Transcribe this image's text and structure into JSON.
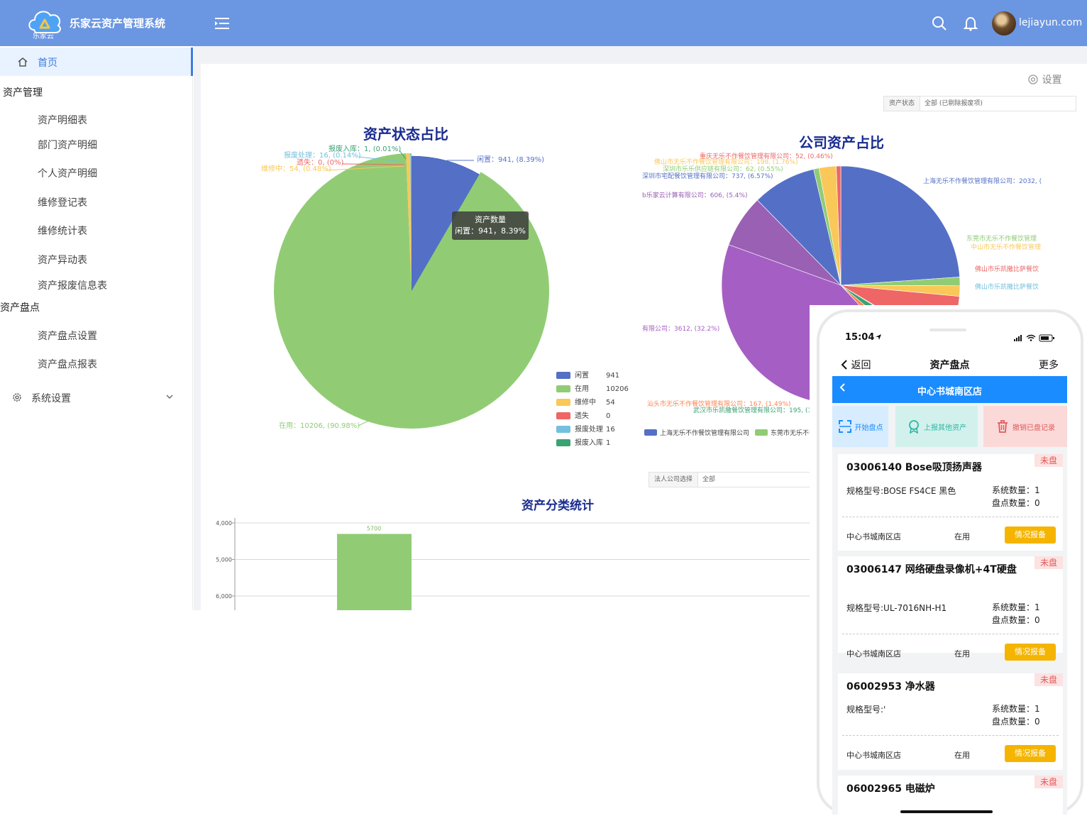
{
  "header": {
    "logo_caption": "乐家云",
    "app_title": "乐家云资产管理系统",
    "username": "lejiayun.com"
  },
  "sidebar": {
    "home": "首页",
    "group_asset_mgmt": "资产管理",
    "asset_items": [
      "资产明细表",
      "部门资产明细",
      "个人资产明细",
      "维修登记表",
      "维修统计表",
      "资产异动表",
      "资产报废信息表"
    ],
    "group_inventory": "资产盘点",
    "inventory_items": [
      "资产盘点设置",
      "资产盘点报表"
    ],
    "system_settings": "系统设置"
  },
  "toolbar": {
    "settings_label": "设置",
    "status_filter_label": "资产状态",
    "status_filter_value": "全部 (已剔除报废项)",
    "company_filter_label": "法人公司选择",
    "company_filter_value": "全部"
  },
  "status_chart": {
    "title": "资产状态占比",
    "tooltip_title": "资产数量",
    "tooltip_value": "闲置：941，8.39%",
    "slice_labels": [
      {
        "text": "闲置：941, (8.39%)",
        "color": "#5470c6"
      },
      {
        "text": "在用：10206, (90.98%)",
        "color": "#91cc75"
      },
      {
        "text": "维修中：54, (0.48%)",
        "color": "#fac858"
      },
      {
        "text": "遗失：0, (0%)",
        "color": "#ee6666"
      },
      {
        "text": "报废处理：16, (0.14%)",
        "color": "#73c0de"
      },
      {
        "text": "报废入库：1, (0.01%)",
        "color": "#3ba272"
      }
    ],
    "legend": [
      {
        "name": "闲置",
        "value": "941",
        "color": "#5470c6"
      },
      {
        "name": "在用",
        "value": "10206",
        "color": "#91cc75"
      },
      {
        "name": "维修中",
        "value": "54",
        "color": "#fac858"
      },
      {
        "name": "遗失",
        "value": "0",
        "color": "#ee6666"
      },
      {
        "name": "报废处理",
        "value": "16",
        "color": "#73c0de"
      },
      {
        "name": "报废入库",
        "value": "1",
        "color": "#3ba272"
      }
    ]
  },
  "company_chart": {
    "title": "公司资产占比",
    "labels": [
      {
        "text": "重庆无乐不作餐饮管理有限公司：52, (0.46%)",
        "color": "#ee6666"
      },
      {
        "text": "佛山市无乐不作餐饮管理有限公司：198, (1.76%)",
        "color": "#fac858"
      },
      {
        "text": "深圳市乐乐供应链有限公司：62, (0.55%)",
        "color": "#91cc75"
      },
      {
        "text": "深圳市宅配餐饮管理有限公司：737, (6.57%)",
        "color": "#5470c6"
      },
      {
        "text": "b乐家云计算有限公司：606, (5.4%)",
        "color": "#9a60b4"
      },
      {
        "text": "有限公司：3612, (32.2%)",
        "color": "#a55fc4"
      },
      {
        "text": "汕头市无乐不作餐饮管理有限公司：167, (1.49%)",
        "color": "#fc8452"
      },
      {
        "text": "武汉市乐凯撒餐饮管理有限公司：195, (1.",
        "color": "#3ba272"
      },
      {
        "text": "上海无乐不作餐饮管理有限公司：2032, (",
        "color": "#5470c6"
      },
      {
        "text": "东莞市无乐不作餐饮管理",
        "color": "#91cc75"
      },
      {
        "text": "中山市无乐不作餐饮管理",
        "color": "#fac858"
      },
      {
        "text": "佛山市乐凯撒比萨餐饮",
        "color": "#ee6666"
      },
      {
        "text": "佛山市乐凯撒比萨餐饮",
        "color": "#73c0de"
      }
    ],
    "legend": [
      {
        "name": "上海无乐不作餐饮管理有限公司",
        "color": "#5470c6"
      },
      {
        "name": "东莞市无乐不作",
        "color": "#91cc75"
      }
    ]
  },
  "category_chart": {
    "title": "资产分类统计",
    "yticks": [
      "6,000",
      "5,000",
      "4,000"
    ],
    "bar_value": "5700"
  },
  "chart_data": [
    {
      "type": "pie",
      "title": "资产状态占比",
      "labels": [
        "闲置",
        "在用",
        "维修中",
        "遗失",
        "报废处理",
        "报废入库"
      ],
      "values": [
        941,
        10206,
        54,
        0,
        16,
        1
      ],
      "percents": [
        8.39,
        90.98,
        0.48,
        0,
        0.14,
        0.01
      ]
    },
    {
      "type": "pie",
      "title": "公司资产占比",
      "labels": [
        "上海无乐不作餐饮管理有限公司",
        "东莞市无乐不作餐饮管理",
        "中山市无乐不作餐饮管理",
        "佛山市乐凯撒比萨餐饮",
        "佛山市乐凯撒比萨餐饮",
        "武汉市乐凯撒餐饮管理有限公司",
        "汕头市无乐不作餐饮管理有限公司",
        "有限公司",
        "b乐家云计算有限公司",
        "深圳市宅配餐饮管理有限公司",
        "深圳市乐乐供应链有限公司",
        "佛山市无乐不作餐饮管理有限公司",
        "重庆无乐不作餐饮管理有限公司"
      ],
      "values": [
        2032,
        100,
        120,
        600,
        20,
        195,
        167,
        3612,
        606,
        737,
        62,
        198,
        52
      ]
    },
    {
      "type": "bar",
      "title": "资产分类统计",
      "values": [
        5700
      ],
      "ylim": [
        4000,
        6000
      ],
      "yticks": [
        4000,
        5000,
        6000
      ]
    }
  ],
  "phone": {
    "time": "15:04",
    "nav_back": "返回",
    "nav_title": "资产盘点",
    "nav_more": "更多",
    "store_name": "中心书城南区店",
    "actions": [
      "开始盘点",
      "上报其他资产",
      "撤销已盘记录"
    ],
    "assets": [
      {
        "title": "03006140 Bose吸顶扬声器",
        "spec": "规格型号:BOSE FS4CE 黑色",
        "sys_qty": "系统数量：1",
        "count_qty": "盘点数量：0",
        "store": "中心书城南区店",
        "status": "在用",
        "report": "情况报备",
        "badge": "未盘"
      },
      {
        "title": "03006147 网络硬盘录像机+4T硬盘",
        "spec": "规格型号:UL-7016NH-H1",
        "sys_qty": "系统数量：1",
        "count_qty": "盘点数量：0",
        "store": "中心书城南区店",
        "status": "在用",
        "report": "情况报备",
        "badge": "未盘"
      },
      {
        "title": "06002953 净水器",
        "spec": "规格型号:'",
        "sys_qty": "系统数量：1",
        "count_qty": "盘点数量：0",
        "store": "中心书城南区店",
        "status": "在用",
        "report": "情况报备",
        "badge": "未盘"
      },
      {
        "title": "06002965 电磁炉",
        "badge": "未盘"
      }
    ]
  }
}
